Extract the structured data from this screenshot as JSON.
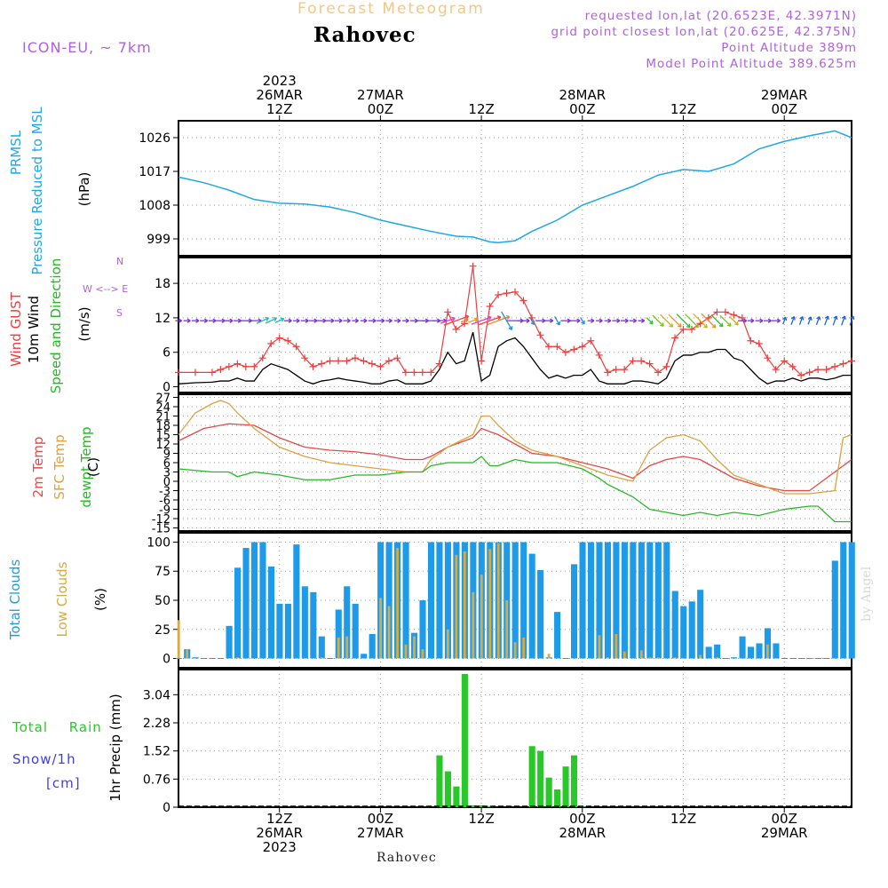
{
  "header": {
    "title": "Forecast Meteogram",
    "location": "Rahovec",
    "model": "ICON-EU, ~ 7km",
    "requested": "requested lon,lat (20.6523E, 42.3971N)",
    "grid_point": "grid point closest lon,lat (20.625E, 42.375N)",
    "point_altitude": "Point Altitude 389m",
    "model_point_altitude": "Model Point Altitude 389.625m"
  },
  "footer": {
    "location": "Rahovec",
    "watermark": "by Angel"
  },
  "time_axis": {
    "top_ticks": [
      {
        "h": 12,
        "lines": [
          "2023",
          "26MAR",
          "12Z"
        ]
      },
      {
        "h": 24,
        "lines": [
          "27MAR",
          "00Z"
        ]
      },
      {
        "h": 36,
        "lines": [
          "12Z"
        ]
      },
      {
        "h": 48,
        "lines": [
          "28MAR",
          "00Z"
        ]
      },
      {
        "h": 60,
        "lines": [
          "12Z"
        ]
      },
      {
        "h": 72,
        "lines": [
          "29MAR",
          "00Z"
        ]
      }
    ],
    "bottom_ticks": [
      {
        "h": 12,
        "lines": [
          "12Z",
          "26MAR",
          "2023"
        ]
      },
      {
        "h": 24,
        "lines": [
          "00Z",
          "27MAR"
        ]
      },
      {
        "h": 36,
        "lines": [
          "12Z"
        ]
      },
      {
        "h": 48,
        "lines": [
          "00Z",
          "28MAR"
        ]
      },
      {
        "h": 60,
        "lines": [
          "12Z"
        ]
      },
      {
        "h": 72,
        "lines": [
          "00Z",
          "29MAR"
        ]
      }
    ]
  },
  "panel_labels": {
    "pressure": {
      "name": "PRMSL",
      "sub": "Pressure Reduced to MSL",
      "unit": "(hPa)"
    },
    "wind": {
      "gust": "Wind GUST",
      "wind10": "10m Wind",
      "dir": "Speed and Direction",
      "unit": "(m/s)",
      "compass_n": "N",
      "compass_s": "S",
      "compass_we": "W <--> E"
    },
    "temp": {
      "t2m": "2m Temp",
      "sfc": "SFC Temp",
      "dew": "dewpt Temp",
      "unit": "(C)"
    },
    "clouds": {
      "total": "Total Clouds",
      "low": "Low Clouds",
      "unit": "(%)"
    },
    "precip": {
      "rain": "Total Rain",
      "snow": "Snow/1h",
      "snow_unit": "[cm]",
      "axis": "1hr Precip (mm)"
    }
  },
  "colors": {
    "pressure": "#1ea8e8",
    "gust": "#f03c3c",
    "wind": "#000000",
    "t2m": "#e84848",
    "sfc": "#e0a040",
    "dew": "#22bb22",
    "total_clouds": "#1e9be8",
    "low_clouds": "#d8aa40",
    "rain": "#28c828",
    "snow_label": "#4040e0",
    "accent": "#b060e0"
  },
  "chart_data": [
    {
      "type": "line",
      "title": "PRMSL Pressure Reduced to MSL",
      "ylabel": "(hPa)",
      "yticks": [
        999,
        1008,
        1017,
        1026
      ],
      "ylim": [
        994.5,
        1030.5
      ],
      "series": [
        {
          "name": "PRMSL",
          "x": [
            0,
            3,
            6,
            9,
            12,
            15,
            18,
            21,
            24,
            27,
            30,
            33,
            35,
            37,
            38,
            40,
            42,
            45,
            48,
            51,
            54,
            57,
            60,
            63,
            66,
            69,
            72,
            75,
            78,
            80
          ],
          "values": [
            1015.5,
            1014,
            1012,
            1009.5,
            1008.5,
            1008.3,
            1007.5,
            1006,
            1004,
            1002.5,
            1001,
            999.7,
            999.5,
            998.2,
            998,
            998.5,
            1001,
            1004,
            1008,
            1010.5,
            1013,
            1016,
            1017.5,
            1017,
            1019,
            1023,
            1025,
            1026.5,
            1027.8,
            1026
          ]
        }
      ]
    },
    {
      "type": "line",
      "title": "Wind GUST / 10m Wind Speed and Direction",
      "ylabel": "(m/s)",
      "yticks": [
        0,
        6,
        12,
        18
      ],
      "ylim": [
        -1,
        22.5
      ],
      "series": [
        {
          "name": "Wind GUST",
          "x": [
            0,
            2,
            4,
            5,
            6,
            7,
            8,
            9,
            10,
            11,
            12,
            13,
            14,
            15,
            16,
            17,
            18,
            19,
            20,
            21,
            22,
            23,
            24,
            25,
            26,
            27,
            28,
            29,
            30,
            31,
            32,
            33,
            34,
            35,
            36,
            37,
            38,
            39,
            40,
            41,
            42,
            43,
            44,
            45,
            46,
            47,
            48,
            49,
            50,
            51,
            52,
            53,
            54,
            55,
            56,
            57,
            58,
            59,
            60,
            61,
            62,
            63,
            64,
            65,
            66,
            67,
            68,
            69,
            70,
            71,
            72,
            73,
            74,
            75,
            76,
            77,
            78,
            79,
            80
          ],
          "values": [
            2.5,
            2.5,
            2.5,
            3,
            3.5,
            4,
            3.5,
            3.5,
            5,
            7.5,
            8.5,
            8,
            7,
            5,
            3.5,
            4,
            4.5,
            4.5,
            4.5,
            5,
            4.5,
            4,
            3.5,
            4.5,
            5,
            2.5,
            2.5,
            2.5,
            2.5,
            4,
            13,
            10,
            11,
            21,
            4.5,
            14,
            16,
            16.3,
            16.5,
            15,
            12,
            9,
            7,
            7,
            6,
            6.5,
            7,
            8,
            5.5,
            2.5,
            3,
            3,
            4.5,
            4.5,
            4,
            2.5,
            3.5,
            8.5,
            10,
            10,
            11,
            12,
            13,
            13,
            12.5,
            12,
            8,
            7.5,
            5,
            3,
            4.5,
            3.5,
            2,
            2.5,
            3,
            3,
            3.5,
            4,
            4.5
          ]
        },
        {
          "name": "10m Wind",
          "x": [
            0,
            2,
            4,
            5,
            6,
            7,
            8,
            9,
            10,
            11,
            12,
            13,
            14,
            15,
            16,
            17,
            18,
            19,
            20,
            21,
            22,
            23,
            24,
            25,
            26,
            27,
            28,
            29,
            30,
            31,
            32,
            33,
            34,
            35,
            36,
            37,
            38,
            39,
            40,
            41,
            42,
            43,
            44,
            45,
            46,
            47,
            48,
            49,
            50,
            51,
            52,
            53,
            54,
            55,
            56,
            57,
            58,
            59,
            60,
            61,
            62,
            63,
            64,
            65,
            66,
            67,
            68,
            69,
            70,
            71,
            72,
            73,
            74,
            75,
            76,
            77,
            78,
            79,
            80
          ],
          "values": [
            0.5,
            0.7,
            0.8,
            1,
            1,
            1.5,
            1,
            1,
            3,
            4,
            3.5,
            3,
            2,
            1,
            0.5,
            1,
            1.2,
            1.5,
            1.2,
            1,
            0.8,
            0.5,
            0.5,
            1,
            1.2,
            0.5,
            0.5,
            0.5,
            1,
            3,
            6,
            4,
            4.5,
            9.5,
            1,
            2,
            7,
            8,
            8.5,
            7,
            5,
            3,
            1.5,
            2,
            1.5,
            2,
            2,
            3,
            1,
            0.5,
            0.5,
            0.5,
            1,
            1,
            0.8,
            0.5,
            1.5,
            4.5,
            5.5,
            5.5,
            6,
            6,
            6.5,
            6.5,
            5,
            4.5,
            3,
            1.5,
            0.5,
            1,
            1,
            1.5,
            1,
            1.5,
            1.5,
            1.2,
            1.5,
            2,
            2
          ]
        }
      ]
    },
    {
      "type": "line",
      "title": "2m Temp / SFC Temp / dewpt Temp",
      "ylabel": "(C)",
      "yticks": [
        -15,
        -12,
        -9,
        -6,
        -3,
        0,
        3,
        6,
        9,
        12,
        15,
        18,
        21,
        24,
        27
      ],
      "ylim": [
        -16,
        28
      ],
      "series": [
        {
          "name": "2m Temp",
          "x": [
            0,
            3,
            6,
            9,
            12,
            15,
            18,
            21,
            24,
            27,
            29,
            30,
            32,
            35,
            36,
            38,
            40,
            42,
            45,
            48,
            51,
            54,
            56,
            58,
            60,
            62,
            64,
            66,
            69,
            72,
            75,
            78,
            80
          ],
          "values": [
            13,
            17,
            18.5,
            18,
            14,
            11,
            10,
            9.5,
            8.5,
            7,
            7,
            8,
            11,
            14,
            17,
            15,
            12,
            9,
            8,
            6,
            4,
            1,
            5,
            7,
            8,
            7,
            4,
            1,
            -1.5,
            -3,
            -3,
            3,
            7
          ]
        },
        {
          "name": "SFC Temp",
          "x": [
            0,
            2,
            4,
            5,
            6,
            7,
            9,
            12,
            15,
            18,
            21,
            24,
            27,
            29,
            30,
            32,
            35,
            36,
            37,
            38,
            40,
            42,
            45,
            48,
            51,
            54,
            56,
            58,
            60,
            62,
            64,
            66,
            69,
            72,
            75,
            78,
            79,
            80
          ],
          "values": [
            15,
            22,
            25,
            26,
            25,
            22,
            17,
            11,
            8,
            6,
            5,
            4,
            3,
            3,
            7,
            11,
            15,
            21,
            21,
            18,
            13,
            10,
            8,
            5,
            2,
            0,
            10,
            14,
            15,
            13,
            7,
            2,
            -1,
            -4,
            -4,
            -3,
            14,
            15
          ]
        },
        {
          "name": "dewpt Temp",
          "x": [
            0,
            2,
            4,
            6,
            7,
            9,
            12,
            15,
            18,
            21,
            24,
            27,
            29,
            30,
            32,
            35,
            36,
            37,
            38,
            40,
            42,
            45,
            48,
            50,
            51,
            54,
            56,
            58,
            60,
            62,
            64,
            66,
            69,
            72,
            75,
            76,
            78,
            80
          ],
          "values": [
            4,
            3.5,
            3,
            3,
            1.5,
            3,
            2,
            0.5,
            0.5,
            2,
            2,
            3,
            3,
            5,
            6,
            6,
            8,
            5,
            5,
            7,
            6,
            6,
            4,
            1,
            -1,
            -5,
            -9,
            -10,
            -11,
            -10,
            -11,
            -10,
            -11,
            -9,
            -8,
            -8,
            -13,
            -13
          ]
        }
      ]
    },
    {
      "type": "bar",
      "title": "Total Clouds / Low Clouds",
      "ylabel": "(%)",
      "yticks": [
        0,
        25,
        50,
        75,
        100
      ],
      "ylim": [
        -8,
        108
      ],
      "x": [
        0,
        1,
        2,
        3,
        4,
        5,
        6,
        7,
        8,
        9,
        10,
        11,
        12,
        13,
        14,
        15,
        16,
        17,
        18,
        19,
        20,
        21,
        22,
        23,
        24,
        25,
        26,
        27,
        28,
        29,
        30,
        31,
        32,
        33,
        34,
        35,
        36,
        37,
        38,
        39,
        40,
        41,
        42,
        43,
        44,
        45,
        46,
        47,
        48,
        49,
        50,
        51,
        52,
        53,
        54,
        55,
        56,
        57,
        58,
        59,
        60,
        61,
        62,
        63,
        64,
        65,
        66,
        67,
        68,
        69,
        70,
        71,
        72,
        73,
        74,
        75,
        76,
        77,
        78,
        79,
        80
      ],
      "series": [
        {
          "name": "Total Clouds",
          "values": [
            0,
            8,
            1,
            0,
            0,
            0,
            28,
            78,
            95,
            100,
            100,
            79,
            47,
            47,
            98,
            62,
            57,
            19,
            0,
            42,
            62,
            47,
            4,
            21,
            100,
            100,
            100,
            100,
            22,
            50,
            100,
            100,
            100,
            100,
            100,
            100,
            100,
            100,
            100,
            100,
            100,
            100,
            90,
            76,
            1,
            40,
            0,
            81,
            100,
            100,
            100,
            100,
            100,
            100,
            100,
            100,
            100,
            100,
            100,
            58,
            45,
            49,
            59,
            10,
            12,
            0,
            1,
            19,
            10,
            13,
            26,
            13,
            0,
            0,
            0,
            0,
            0,
            0,
            84,
            100,
            100
          ]
        },
        {
          "name": "Low Clouds",
          "values": [
            33,
            8,
            0,
            0,
            0,
            0,
            0,
            1,
            0,
            0,
            0,
            0,
            0,
            0,
            0,
            0,
            0,
            1,
            0,
            18,
            19,
            0,
            0,
            0,
            52,
            45,
            95,
            12,
            19,
            8,
            0,
            0,
            25,
            89,
            92,
            57,
            72,
            94,
            99,
            50,
            14,
            18,
            0,
            0,
            4,
            0,
            0,
            0,
            0,
            0,
            20,
            1,
            21,
            6,
            0,
            7,
            1,
            1,
            0,
            1,
            0,
            0,
            3,
            0,
            1,
            0,
            0,
            0,
            0,
            0,
            12,
            0,
            0,
            0,
            0,
            0,
            0,
            0,
            0,
            0,
            0
          ]
        }
      ]
    },
    {
      "type": "bar",
      "title": "1hr Precip (mm)",
      "ylabel": "1hr Precip (mm)",
      "yticks": [
        0,
        0.76,
        1.52,
        2.28,
        3.04
      ],
      "ylim": [
        0,
        3.72
      ],
      "x": [
        31,
        32,
        33,
        34,
        35,
        36,
        37,
        42,
        43,
        44,
        45,
        46,
        47,
        48
      ],
      "series": [
        {
          "name": "Total Rain",
          "values": [
            1.4,
            0.97,
            0.56,
            3.6,
            0.05,
            0.05,
            0.03,
            1.65,
            1.52,
            0.8,
            0.48,
            1.1,
            1.4,
            0.02
          ]
        }
      ]
    }
  ]
}
